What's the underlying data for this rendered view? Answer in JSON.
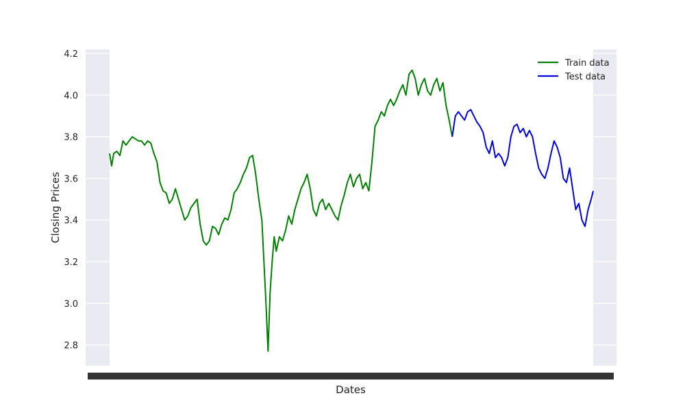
{
  "chart_data": {
    "type": "line",
    "xlabel": "Dates",
    "ylabel": "Closing Prices",
    "ylim": [
      2.7,
      4.22
    ],
    "yticks": [
      2.8,
      3.0,
      3.2,
      3.4,
      3.6,
      3.8,
      4.0,
      4.2
    ],
    "ytick_labels": [
      "2.8",
      "3.0",
      "3.2",
      "3.4",
      "3.6",
      "3.8",
      "4.0",
      "4.2"
    ],
    "x_tick_labels_overlapping": true,
    "grid": true,
    "background": "#eaeaf2",
    "legend_position": "top-right",
    "series": [
      {
        "name": "Train data",
        "color": "#008000",
        "points": [
          [
            0,
            3.72
          ],
          [
            2,
            3.66
          ],
          [
            4,
            3.72
          ],
          [
            7,
            3.73
          ],
          [
            10,
            3.71
          ],
          [
            13,
            3.78
          ],
          [
            16,
            3.76
          ],
          [
            19,
            3.78
          ],
          [
            22,
            3.8
          ],
          [
            25,
            3.79
          ],
          [
            28,
            3.78
          ],
          [
            31,
            3.78
          ],
          [
            34,
            3.76
          ],
          [
            37,
            3.78
          ],
          [
            40,
            3.77
          ],
          [
            43,
            3.72
          ],
          [
            46,
            3.68
          ],
          [
            49,
            3.58
          ],
          [
            52,
            3.54
          ],
          [
            55,
            3.53
          ],
          [
            58,
            3.48
          ],
          [
            61,
            3.5
          ],
          [
            64,
            3.55
          ],
          [
            67,
            3.5
          ],
          [
            70,
            3.45
          ],
          [
            73,
            3.4
          ],
          [
            76,
            3.42
          ],
          [
            79,
            3.46
          ],
          [
            82,
            3.48
          ],
          [
            85,
            3.5
          ],
          [
            88,
            3.38
          ],
          [
            91,
            3.3
          ],
          [
            94,
            3.28
          ],
          [
            97,
            3.3
          ],
          [
            100,
            3.37
          ],
          [
            103,
            3.36
          ],
          [
            106,
            3.33
          ],
          [
            109,
            3.38
          ],
          [
            112,
            3.41
          ],
          [
            115,
            3.4
          ],
          [
            118,
            3.45
          ],
          [
            121,
            3.53
          ],
          [
            124,
            3.55
          ],
          [
            127,
            3.58
          ],
          [
            130,
            3.62
          ],
          [
            133,
            3.65
          ],
          [
            136,
            3.7
          ],
          [
            139,
            3.71
          ],
          [
            142,
            3.62
          ],
          [
            145,
            3.5
          ],
          [
            148,
            3.4
          ],
          [
            150,
            3.2
          ],
          [
            152,
            3.0
          ],
          [
            154,
            2.77
          ],
          [
            156,
            3.05
          ],
          [
            158,
            3.2
          ],
          [
            160,
            3.32
          ],
          [
            162,
            3.25
          ],
          [
            165,
            3.32
          ],
          [
            168,
            3.3
          ],
          [
            171,
            3.35
          ],
          [
            174,
            3.42
          ],
          [
            177,
            3.38
          ],
          [
            180,
            3.45
          ],
          [
            183,
            3.5
          ],
          [
            186,
            3.55
          ],
          [
            189,
            3.58
          ],
          [
            192,
            3.62
          ],
          [
            195,
            3.55
          ],
          [
            198,
            3.45
          ],
          [
            201,
            3.42
          ],
          [
            204,
            3.48
          ],
          [
            207,
            3.5
          ],
          [
            210,
            3.45
          ],
          [
            213,
            3.48
          ],
          [
            216,
            3.45
          ],
          [
            219,
            3.42
          ],
          [
            222,
            3.4
          ],
          [
            225,
            3.47
          ],
          [
            228,
            3.52
          ],
          [
            231,
            3.58
          ],
          [
            234,
            3.62
          ],
          [
            237,
            3.56
          ],
          [
            240,
            3.6
          ],
          [
            243,
            3.62
          ],
          [
            246,
            3.55
          ],
          [
            249,
            3.58
          ],
          [
            252,
            3.54
          ],
          [
            255,
            3.68
          ],
          [
            258,
            3.85
          ],
          [
            261,
            3.88
          ],
          [
            264,
            3.92
          ],
          [
            267,
            3.9
          ],
          [
            270,
            3.95
          ],
          [
            273,
            3.98
          ],
          [
            276,
            3.95
          ],
          [
            279,
            3.98
          ],
          [
            282,
            4.02
          ],
          [
            285,
            4.05
          ],
          [
            288,
            4.0
          ],
          [
            291,
            4.1
          ],
          [
            294,
            4.12
          ],
          [
            297,
            4.08
          ],
          [
            300,
            4.0
          ],
          [
            303,
            4.05
          ],
          [
            306,
            4.08
          ],
          [
            309,
            4.02
          ],
          [
            312,
            4.0
          ],
          [
            315,
            4.05
          ],
          [
            318,
            4.08
          ],
          [
            321,
            4.02
          ],
          [
            324,
            4.06
          ],
          [
            327,
            3.95
          ],
          [
            330,
            3.88
          ],
          [
            333,
            3.8
          ]
        ]
      },
      {
        "name": "Test data",
        "color": "#0000e0",
        "points": [
          [
            333,
            3.8
          ],
          [
            336,
            3.9
          ],
          [
            339,
            3.92
          ],
          [
            342,
            3.9
          ],
          [
            345,
            3.88
          ],
          [
            348,
            3.92
          ],
          [
            351,
            3.93
          ],
          [
            354,
            3.9
          ],
          [
            357,
            3.87
          ],
          [
            360,
            3.85
          ],
          [
            363,
            3.82
          ],
          [
            366,
            3.75
          ],
          [
            369,
            3.72
          ],
          [
            372,
            3.78
          ],
          [
            375,
            3.7
          ],
          [
            378,
            3.72
          ],
          [
            381,
            3.7
          ],
          [
            384,
            3.66
          ],
          [
            387,
            3.7
          ],
          [
            390,
            3.8
          ],
          [
            393,
            3.85
          ],
          [
            396,
            3.86
          ],
          [
            399,
            3.82
          ],
          [
            402,
            3.84
          ],
          [
            405,
            3.8
          ],
          [
            408,
            3.83
          ],
          [
            411,
            3.8
          ],
          [
            414,
            3.72
          ],
          [
            417,
            3.65
          ],
          [
            420,
            3.62
          ],
          [
            423,
            3.6
          ],
          [
            426,
            3.65
          ],
          [
            429,
            3.72
          ],
          [
            432,
            3.78
          ],
          [
            435,
            3.75
          ],
          [
            438,
            3.7
          ],
          [
            441,
            3.6
          ],
          [
            444,
            3.58
          ],
          [
            447,
            3.65
          ],
          [
            450,
            3.55
          ],
          [
            453,
            3.45
          ],
          [
            456,
            3.48
          ],
          [
            459,
            3.4
          ],
          [
            462,
            3.37
          ],
          [
            465,
            3.45
          ],
          [
            468,
            3.5
          ],
          [
            470,
            3.54
          ]
        ]
      }
    ],
    "x_range": [
      0,
      470
    ]
  }
}
